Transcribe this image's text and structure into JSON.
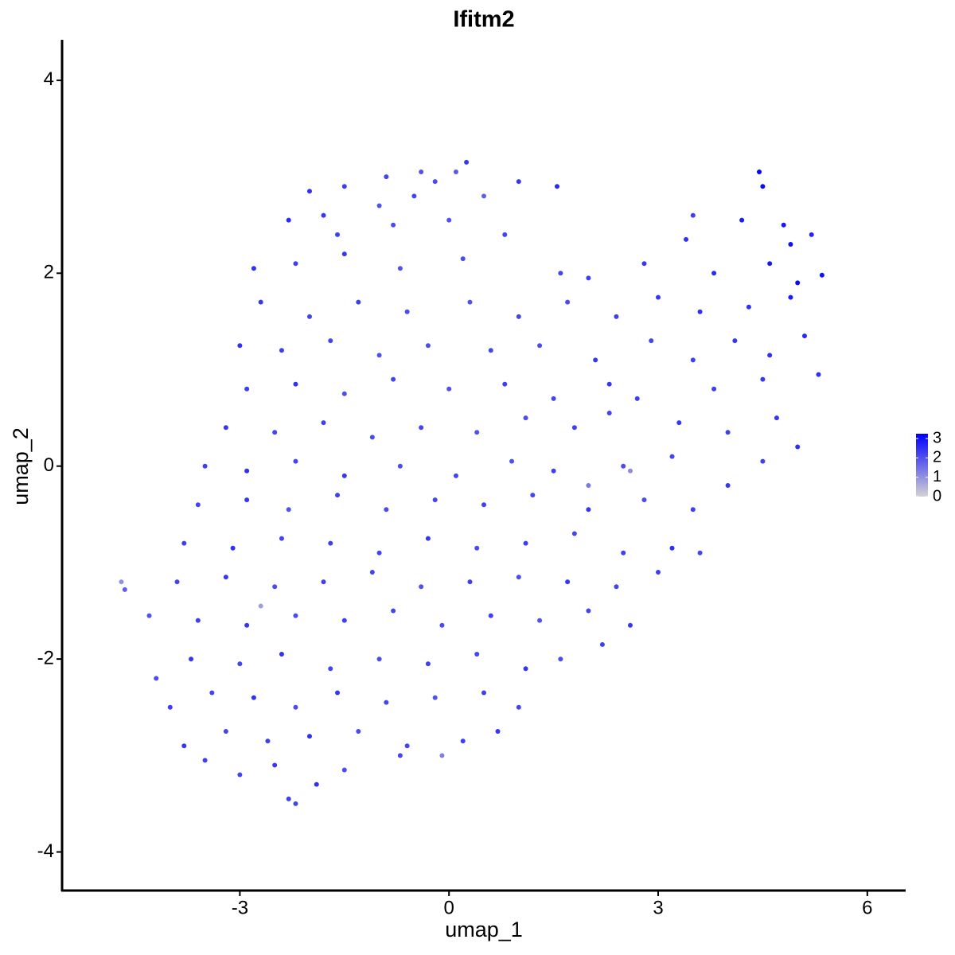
{
  "chart_data": {
    "type": "scatter",
    "title": "Ifitm2",
    "x_label": "umap_1",
    "y_label": "umap_2",
    "xlim": [
      -5.55,
      6.55
    ],
    "xticks": [
      -3,
      0,
      3,
      6
    ],
    "ylim": [
      -4.4,
      4.42
    ],
    "yticks": [
      -4,
      -2,
      0,
      2,
      4
    ],
    "x": [
      -0.9,
      -0.4,
      0.1,
      0.25,
      -0.2,
      -2.0,
      -1.5,
      -1.0,
      -0.5,
      0.5,
      1.0,
      1.55,
      -1.8,
      -2.3,
      -1.6,
      -0.8,
      0.0,
      0.8,
      4.2,
      4.5,
      4.8,
      5.2,
      3.5,
      4.45,
      -2.8,
      -2.2,
      -1.5,
      -0.7,
      0.2,
      1.6,
      2.0,
      2.8,
      3.4,
      3.8,
      4.6,
      5.0,
      5.35,
      4.9,
      -2.7,
      -2.0,
      -1.3,
      -0.6,
      0.3,
      1.0,
      1.7,
      2.4,
      3.0,
      3.6,
      4.3,
      4.9,
      -3.0,
      -2.4,
      -1.7,
      -1.0,
      -0.3,
      0.6,
      1.3,
      2.1,
      2.9,
      3.5,
      4.1,
      4.6,
      5.1,
      -2.9,
      -2.2,
      -1.5,
      -0.8,
      0.0,
      0.8,
      1.5,
      2.3,
      2.7,
      3.8,
      4.5,
      5.3,
      -3.2,
      -2.5,
      -1.8,
      -1.1,
      -0.4,
      0.4,
      1.1,
      1.8,
      2.3,
      3.3,
      4.0,
      4.7,
      5.0,
      -3.5,
      -2.9,
      -2.2,
      -1.5,
      -0.7,
      0.1,
      0.9,
      1.5,
      2.5,
      2.6,
      3.2,
      4.0,
      4.5,
      -3.6,
      -2.9,
      -2.3,
      -1.6,
      -0.9,
      -0.2,
      0.5,
      1.2,
      2.0,
      2.8,
      3.5,
      2.0,
      -3.8,
      -3.1,
      -2.4,
      -1.7,
      -1.0,
      -0.3,
      0.4,
      1.1,
      1.8,
      2.5,
      3.2,
      3.6,
      -4.7,
      -4.65,
      -3.9,
      -3.2,
      -2.5,
      -1.8,
      -1.1,
      -0.4,
      0.3,
      1.0,
      1.7,
      2.4,
      3.0,
      -4.3,
      -3.6,
      -2.7,
      -2.9,
      -2.2,
      -1.5,
      -0.8,
      -0.1,
      0.6,
      1.3,
      2.0,
      2.6,
      -4.2,
      -3.7,
      -3.0,
      -2.4,
      -1.7,
      -1.0,
      -0.3,
      0.4,
      1.1,
      1.6,
      2.2,
      -4.0,
      -3.4,
      -2.8,
      -2.2,
      -1.6,
      -0.9,
      -0.2,
      0.5,
      1.0,
      -3.8,
      -3.2,
      -2.6,
      -2.0,
      -1.3,
      -0.6,
      0.2,
      0.7,
      -3.5,
      -3.0,
      -2.5,
      -1.5,
      -0.7,
      -0.1,
      -2.3,
      -1.9,
      -2.2
    ],
    "values": [
      3.0,
      3.05,
      3.05,
      3.15,
      2.95,
      2.85,
      2.9,
      2.7,
      2.8,
      2.8,
      2.95,
      2.9,
      2.6,
      2.55,
      2.4,
      2.5,
      2.55,
      2.4,
      2.55,
      2.9,
      2.5,
      2.4,
      2.6,
      3.05,
      2.05,
      2.1,
      2.2,
      2.05,
      2.15,
      2.0,
      1.95,
      2.1,
      2.35,
      2.0,
      2.1,
      1.9,
      1.98,
      2.3,
      1.7,
      1.55,
      1.7,
      1.6,
      1.7,
      1.55,
      1.7,
      1.55,
      1.75,
      1.6,
      1.65,
      1.75,
      1.25,
      1.2,
      1.3,
      1.15,
      1.25,
      1.2,
      1.25,
      1.1,
      1.3,
      1.1,
      1.3,
      1.15,
      1.35,
      0.8,
      0.85,
      0.75,
      0.9,
      0.8,
      0.85,
      0.7,
      0.85,
      0.7,
      0.8,
      0.9,
      0.95,
      0.4,
      0.35,
      0.45,
      0.3,
      0.4,
      0.35,
      0.5,
      0.4,
      0.55,
      0.45,
      0.35,
      0.5,
      0.2,
      0.0,
      -0.05,
      0.05,
      -0.1,
      0.0,
      -0.1,
      0.05,
      -0.05,
      0.0,
      -0.05,
      0.1,
      -0.2,
      0.05,
      -0.4,
      -0.35,
      -0.45,
      -0.3,
      -0.45,
      -0.35,
      -0.4,
      -0.3,
      -0.45,
      -0.35,
      -0.45,
      -0.2,
      -0.8,
      -0.85,
      -0.75,
      -0.8,
      -0.9,
      -0.75,
      -0.85,
      -0.8,
      -0.7,
      -0.9,
      -0.85,
      -0.9,
      -1.2,
      -1.28,
      -1.2,
      -1.15,
      -1.25,
      -1.2,
      -1.1,
      -1.25,
      -1.2,
      -1.15,
      -1.2,
      -1.25,
      -1.1,
      -1.55,
      -1.6,
      -1.45,
      -1.65,
      -1.55,
      -1.6,
      -1.5,
      -1.65,
      -1.55,
      -1.6,
      -1.5,
      -1.65,
      -2.2,
      -2.0,
      -2.05,
      -1.95,
      -2.1,
      -2.0,
      -2.05,
      -1.95,
      -2.1,
      -2.0,
      -1.85,
      -2.5,
      -2.35,
      -2.4,
      -2.5,
      -2.35,
      -2.45,
      -2.4,
      -2.35,
      -2.5,
      -2.9,
      -2.75,
      -2.85,
      -2.8,
      -2.75,
      -2.9,
      -2.85,
      -2.75,
      -3.05,
      -3.2,
      -3.1,
      -3.15,
      -3.0,
      -3.0,
      -3.45,
      -3.3,
      -3.5
    ],
    "expression": [
      2.2,
      2.0,
      1.9,
      2.4,
      2.1,
      2.5,
      2.3,
      2.0,
      2.2,
      1.8,
      2.4,
      2.6,
      2.4,
      2.6,
      2.3,
      2.1,
      2.0,
      2.2,
      2.8,
      3.1,
      2.9,
      2.7,
      2.3,
      3.2,
      2.5,
      2.3,
      2.4,
      2.0,
      2.1,
      2.2,
      2.3,
      2.4,
      2.5,
      2.6,
      2.9,
      3.1,
      3.0,
      3.0,
      2.4,
      2.2,
      2.3,
      2.1,
      2.0,
      2.2,
      2.1,
      2.3,
      2.4,
      2.5,
      2.5,
      2.8,
      2.5,
      2.3,
      2.2,
      2.0,
      2.1,
      2.2,
      2.1,
      2.4,
      2.2,
      2.3,
      2.4,
      2.5,
      2.6,
      2.3,
      2.5,
      2.1,
      2.2,
      2.0,
      2.3,
      2.2,
      2.4,
      2.3,
      2.3,
      2.4,
      2.5,
      2.4,
      2.2,
      2.3,
      2.1,
      2.2,
      2.0,
      2.1,
      2.3,
      2.2,
      2.4,
      2.3,
      2.4,
      2.5,
      2.3,
      2.5,
      2.2,
      2.4,
      2.1,
      2.2,
      2.0,
      2.3,
      2.1,
      1.1,
      2.2,
      2.4,
      2.3,
      2.2,
      2.4,
      2.0,
      2.3,
      2.1,
      2.2,
      2.3,
      2.2,
      2.4,
      2.1,
      2.3,
      1.4,
      2.3,
      2.5,
      2.2,
      2.3,
      2.2,
      2.4,
      2.1,
      2.3,
      2.2,
      2.3,
      2.5,
      2.2,
      1.0,
      1.8,
      2.2,
      2.4,
      2.1,
      2.3,
      2.2,
      2.0,
      2.3,
      2.1,
      2.4,
      2.2,
      2.3,
      2.0,
      2.3,
      0.8,
      2.4,
      2.1,
      2.3,
      2.2,
      2.1,
      2.3,
      2.0,
      2.2,
      2.4,
      2.1,
      2.4,
      2.2,
      2.5,
      2.2,
      2.1,
      2.3,
      2.2,
      2.4,
      2.1,
      2.3,
      2.3,
      2.2,
      2.5,
      2.1,
      2.4,
      2.2,
      2.0,
      2.3,
      2.2,
      2.4,
      2.2,
      2.3,
      2.5,
      2.1,
      2.2,
      2.3,
      2.4,
      2.3,
      2.2,
      2.4,
      2.1,
      2.2,
      1.3,
      2.3,
      2.5,
      2.2
    ],
    "color_scale": {
      "low": "#d3d3d3",
      "high": "#0000ff",
      "lim": [
        0,
        3.25
      ],
      "ticks": [
        0,
        1,
        2,
        3
      ]
    }
  }
}
